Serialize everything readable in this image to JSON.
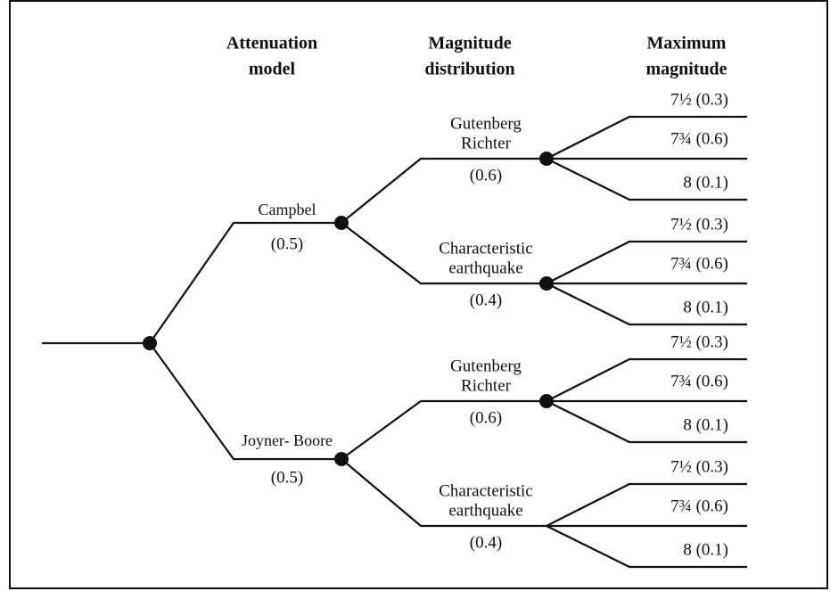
{
  "headers": [
    [
      "Attenuation",
      "model"
    ],
    [
      "Magnitude",
      "distribution"
    ],
    [
      "Maximum",
      "magnitude"
    ]
  ],
  "models": [
    {
      "name": "Campbel",
      "weight": "(0.5)",
      "distributions": [
        {
          "name": [
            "Gutenberg",
            "Richter"
          ],
          "weight": "(0.6)",
          "magnitudes": [
            "7½ (0.3)",
            "7¾ (0.6)",
            "8 (0.1)"
          ]
        },
        {
          "name": [
            "Characteristic",
            "earthquake"
          ],
          "weight": "(0.4)",
          "magnitudes": [
            "7½ (0.3)",
            "7¾ (0.6)",
            "8 (0.1)"
          ]
        }
      ]
    },
    {
      "name": "Joyner- Boore",
      "weight": "(0.5)",
      "distributions": [
        {
          "name": [
            "Gutenberg",
            "Richter"
          ],
          "weight": "(0.6)",
          "magnitudes": [
            "7½ (0.3)",
            "7¾ (0.6)",
            "8 (0.1)"
          ]
        },
        {
          "name": [
            "Characteristic",
            "earthquake"
          ],
          "weight": "(0.4)",
          "magnitudes": [
            "7½ (0.3)",
            "7¾ (0.6)",
            "8 (0.1)"
          ]
        }
      ]
    }
  ]
}
